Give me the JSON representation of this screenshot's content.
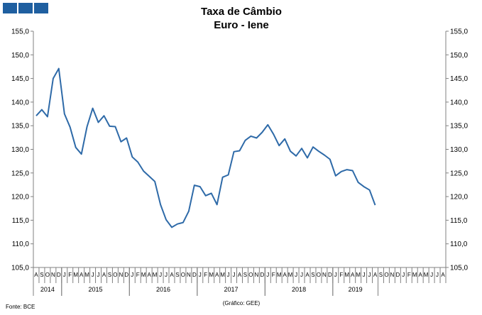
{
  "logo": {
    "color": "#1f5fa0"
  },
  "chart_data": {
    "type": "line",
    "title": "Taxa de Câmbio",
    "subtitle": "Euro - Iene",
    "source": "Fonte: BCE",
    "credit": "(Gráfico: GEE)",
    "ylim": [
      105,
      155
    ],
    "yticks": [
      "105,0",
      "110,0",
      "115,0",
      "120,0",
      "125,0",
      "130,0",
      "135,0",
      "140,0",
      "145,0",
      "150,0",
      "155,0"
    ],
    "y_on_both_sides": true,
    "grid": false,
    "line_color": "#2e6aa8",
    "month_labels": [
      "A",
      "S",
      "O",
      "N",
      "D",
      "J",
      "F",
      "M",
      "A",
      "M",
      "J",
      "J",
      "A",
      "S",
      "O",
      "N",
      "D",
      "J",
      "F",
      "M",
      "A",
      "M",
      "J",
      "J",
      "A",
      "S",
      "O",
      "N",
      "D",
      "J",
      "F",
      "M",
      "A",
      "M",
      "J",
      "J",
      "A",
      "S",
      "O",
      "N",
      "D",
      "J",
      "F",
      "M",
      "A",
      "M",
      "J",
      "J",
      "A",
      "S",
      "O",
      "N",
      "D",
      "J",
      "F",
      "M",
      "A",
      "M",
      "J",
      "J",
      "A",
      "S",
      "O",
      "N",
      "D",
      "J",
      "F",
      "M",
      "A",
      "M",
      "J",
      "J",
      "A"
    ],
    "year_groups": [
      {
        "label": "2014",
        "start": 0,
        "count": 5
      },
      {
        "label": "2015",
        "start": 5,
        "count": 12
      },
      {
        "label": "2016",
        "start": 17,
        "count": 12
      },
      {
        "label": "2017",
        "start": 29,
        "count": 12
      },
      {
        "label": "2018",
        "start": 41,
        "count": 12
      },
      {
        "label": "2019",
        "start": 53,
        "count": 8
      }
    ],
    "series": [
      {
        "values": [
          137.1,
          138.4,
          136.9,
          145.0,
          147.1,
          137.5,
          134.7,
          130.4,
          129.0,
          134.8,
          138.7,
          135.7,
          137.1,
          134.9,
          134.8,
          131.6,
          132.4,
          128.4,
          127.3,
          125.4,
          124.3,
          123.2,
          118.3,
          115.1,
          113.5,
          114.2,
          114.5,
          116.9,
          122.4,
          122.1,
          120.2,
          120.7,
          118.3,
          124.1,
          124.6,
          129.5,
          129.7,
          131.9,
          132.8,
          132.4,
          133.6,
          135.2,
          133.2,
          130.8,
          132.2,
          129.6,
          128.6,
          130.2,
          128.2,
          130.5,
          129.6,
          128.8,
          127.9,
          124.4,
          125.3,
          125.7,
          125.5,
          123.0,
          122.1,
          121.4,
          118.2
        ]
      }
    ]
  }
}
